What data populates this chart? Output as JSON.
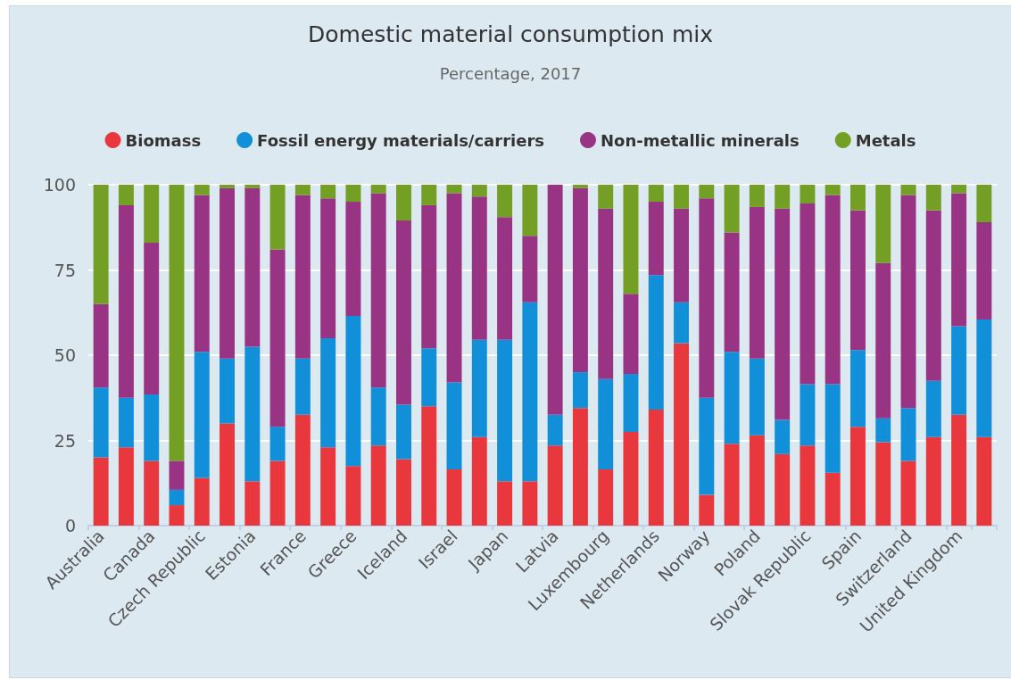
{
  "chart_data": {
    "type": "bar",
    "title": "Domestic material consumption mix",
    "subtitle": "Percentage, 2017",
    "categories": [
      "Australia",
      null,
      "Canada",
      null,
      "Czech Republic",
      null,
      "Estonia",
      null,
      "France",
      null,
      "Greece",
      null,
      "Iceland",
      null,
      "Israel",
      null,
      "Japan",
      null,
      "Latvia",
      null,
      "Luxembourg",
      null,
      "Netherlands",
      null,
      "Norway",
      null,
      "Poland",
      null,
      "Slovak Republic",
      null,
      "Spain",
      null,
      "Switzerland",
      null,
      "United Kingdom",
      null
    ],
    "series": [
      {
        "name": "Biomass",
        "color": "#e8383d",
        "values": [
          20,
          23,
          19,
          6,
          14,
          30,
          13,
          19,
          32.5,
          23,
          17.5,
          23.5,
          19.5,
          35,
          16.5,
          26,
          13,
          13,
          23.5,
          34.5,
          16.5,
          27.5,
          34,
          53.5,
          9,
          24,
          26.5,
          21,
          23.5,
          15.5,
          29,
          24.5,
          19,
          26,
          32.5,
          26
        ]
      },
      {
        "name": "Fossil energy materials/carriers",
        "color": "#118fd9",
        "values": [
          20.5,
          14.5,
          19.5,
          4.5,
          37,
          19,
          39.5,
          10,
          16.5,
          32,
          44,
          17,
          16,
          17,
          25.5,
          28.5,
          41.5,
          52.5,
          9,
          10.5,
          26.5,
          17,
          39.5,
          12,
          28.5,
          27,
          22.5,
          10,
          18,
          26,
          22.5,
          7,
          15.5,
          16.5,
          26,
          34.5
        ]
      },
      {
        "name": "Non-metallic minerals",
        "color": "#993484",
        "values": [
          24.5,
          56.5,
          44.5,
          8.5,
          46,
          50,
          46.5,
          52,
          48,
          41,
          33.5,
          57,
          54,
          42,
          55.5,
          42,
          36,
          19.5,
          67.5,
          54,
          50,
          23.5,
          21.5,
          27.5,
          58.5,
          35,
          44.5,
          62,
          53,
          55.5,
          41,
          45.5,
          62.5,
          50,
          39,
          28.5
        ]
      },
      {
        "name": "Metals",
        "color": "#739f25",
        "values": [
          35,
          6,
          17,
          81,
          3,
          1,
          1,
          19,
          3,
          4,
          5,
          2.5,
          10.5,
          6,
          2.5,
          3.5,
          9.5,
          15,
          0,
          1,
          7,
          32,
          5,
          7,
          4,
          14,
          6.5,
          7,
          5.5,
          3,
          7.5,
          23,
          3,
          7.5,
          2.5,
          11
        ]
      }
    ],
    "stacked": true,
    "ylim": [
      0,
      100
    ],
    "yticks": [
      0,
      25,
      50,
      75,
      100
    ],
    "grid": "y",
    "legend": "top"
  }
}
